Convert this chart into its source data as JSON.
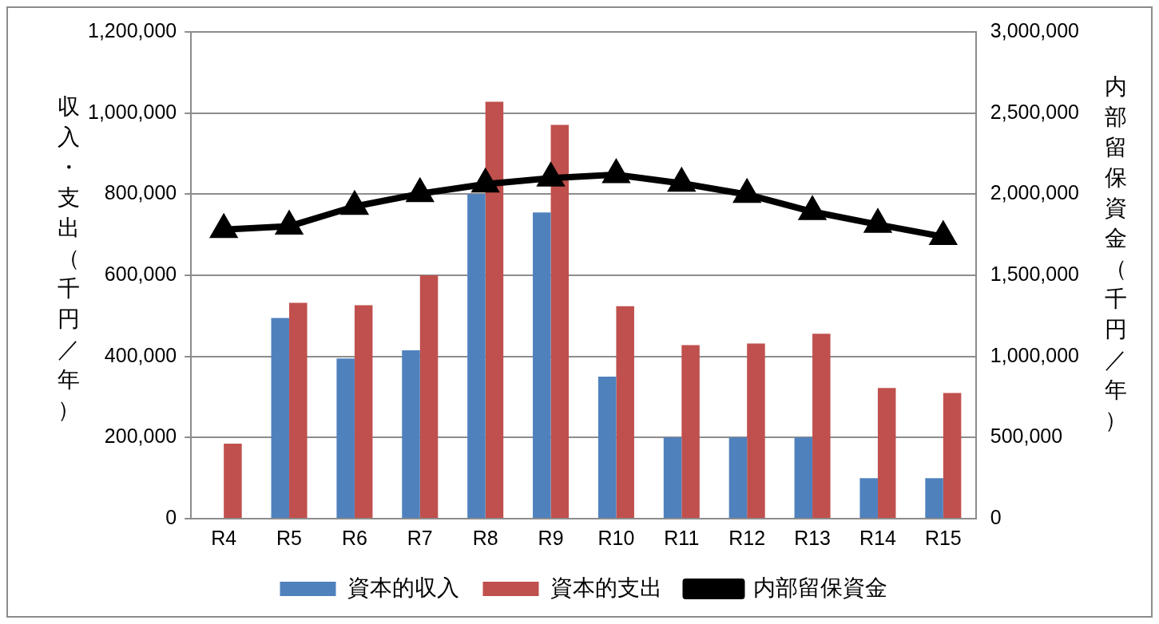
{
  "chart_data": {
    "type": "bar",
    "categories": [
      "R4",
      "R5",
      "R6",
      "R7",
      "R8",
      "R9",
      "R10",
      "R11",
      "R12",
      "R13",
      "R14",
      "R15"
    ],
    "ylabel": "収入・支出（千円／年）",
    "y2label": "内部留保資金（千円／年）",
    "series": [
      {
        "name": "資本的収入",
        "color": "#4f81bd",
        "values": [
          null,
          495000,
          395000,
          415000,
          800000,
          755000,
          350000,
          200000,
          200000,
          200000,
          100000,
          100000
        ]
      },
      {
        "name": "資本的支出",
        "color": "#c0504d",
        "values": [
          185000,
          532000,
          526000,
          600000,
          1028000,
          971000,
          524000,
          428000,
          432000,
          456000,
          322000,
          310000
        ]
      },
      {
        "name": "内部留保資金",
        "type": "line",
        "axis": "y2",
        "color": "#000000",
        "marker": "triangle",
        "values": [
          1781000,
          1802000,
          1924000,
          2003000,
          2062000,
          2099000,
          2120000,
          2067000,
          1998000,
          1892000,
          1813000,
          1738000
        ]
      }
    ],
    "ylim": [
      0,
      1200000
    ],
    "yticks": [
      0,
      {
        "value": 200000,
        "label": "200,000"
      },
      {
        "value": 400000,
        "label": "400,000"
      },
      {
        "value": 600000,
        "label": "600,000"
      },
      {
        "value": 800000,
        "label": "800,000"
      },
      {
        "value": 1000000,
        "label": "1,000,000"
      },
      {
        "value": 1200000,
        "label": "1,200,000"
      }
    ],
    "y2lim": [
      0,
      3000000
    ],
    "y2ticks": [
      0,
      {
        "value": 500000,
        "label": "500,000"
      },
      {
        "value": 1000000,
        "label": "1,000,000"
      },
      {
        "value": 1500000,
        "label": "1,500,000"
      },
      {
        "value": 2000000,
        "label": "2,000,000"
      },
      {
        "value": 2500000,
        "label": "2,500,000"
      },
      {
        "value": 3000000,
        "label": "3,000,000"
      }
    ],
    "grid": "y",
    "legend": "bottom"
  }
}
